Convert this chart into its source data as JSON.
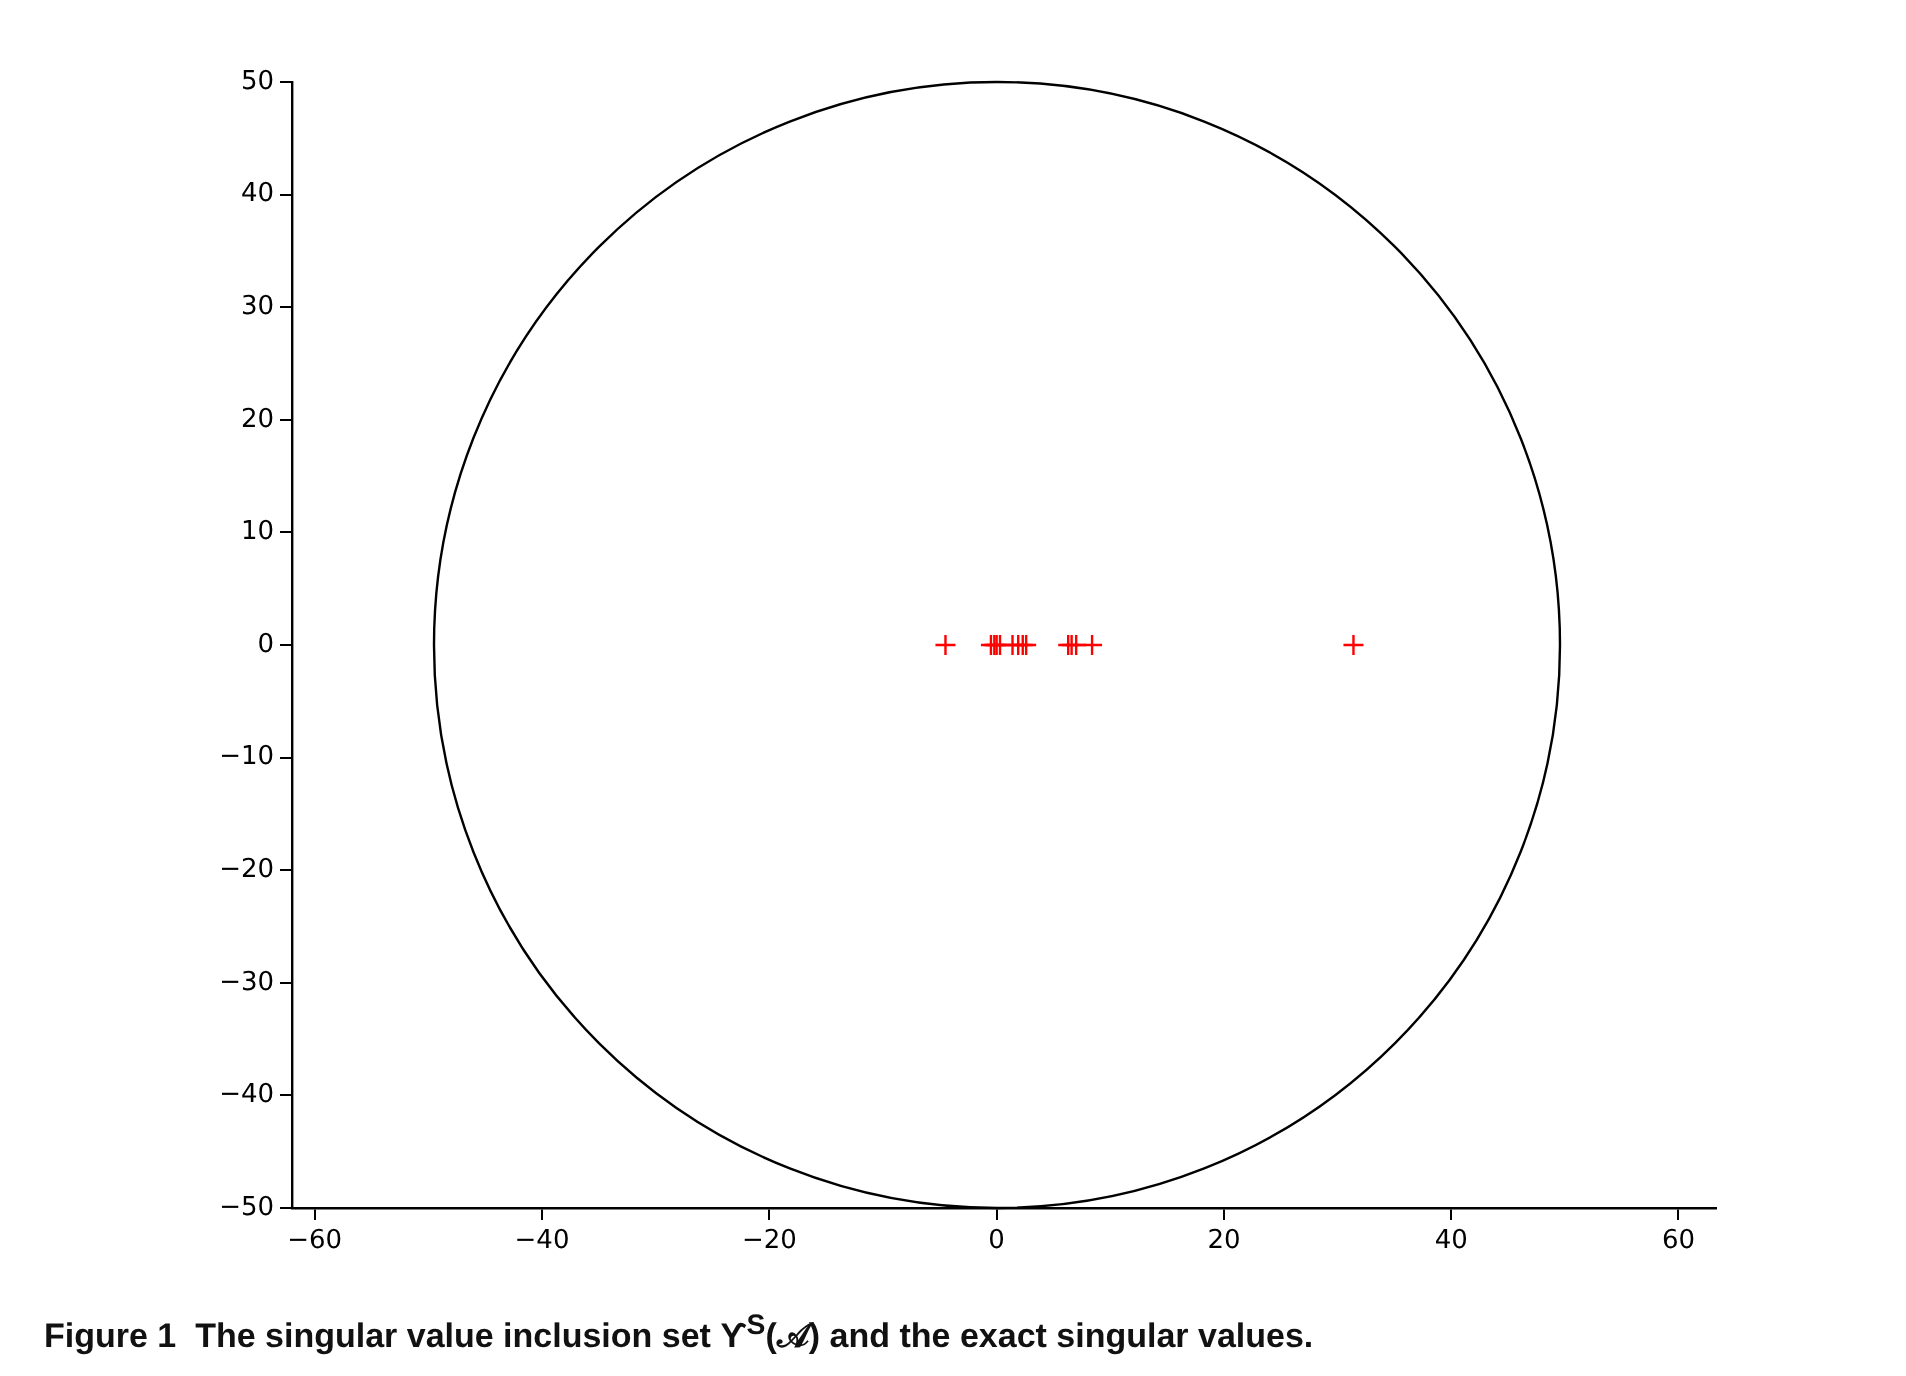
{
  "chart_data": {
    "type": "scatter",
    "annotations": [
      "Figure 1  The singular value inclusion set ϒ$^{S}$(𝒜) and the exact singular values."
    ],
    "xlim": [
      -62,
      63.3
    ],
    "ylim": [
      -50,
      50
    ],
    "xticks": [
      {
        "value": -60,
        "label": "−60"
      },
      {
        "value": -40,
        "label": "−40"
      },
      {
        "value": -20,
        "label": "−20"
      },
      0,
      20,
      40,
      60
    ],
    "yticks": [
      {
        "value": -50,
        "label": "−50"
      },
      {
        "value": -40,
        "label": "−40"
      },
      {
        "value": -30,
        "label": "−30"
      },
      {
        "value": -20,
        "label": "−20"
      },
      {
        "value": -10,
        "label": "−10"
      },
      0,
      10,
      20,
      30,
      40,
      50
    ],
    "grid": false,
    "legend": false,
    "series": [
      {
        "type": "scatter",
        "color": "#ff0000",
        "marker": "cross",
        "x": [
          -4.5,
          -0.5,
          -0.2,
          0,
          0.3,
          1.4,
          1.9,
          2.3,
          2.6,
          6.3,
          6.6,
          7.0,
          8.4,
          31.4
        ],
        "values": [
          0,
          0,
          0,
          0,
          0,
          0,
          0,
          0,
          0,
          0,
          0,
          0,
          0,
          0
        ]
      }
    ]
  }
}
